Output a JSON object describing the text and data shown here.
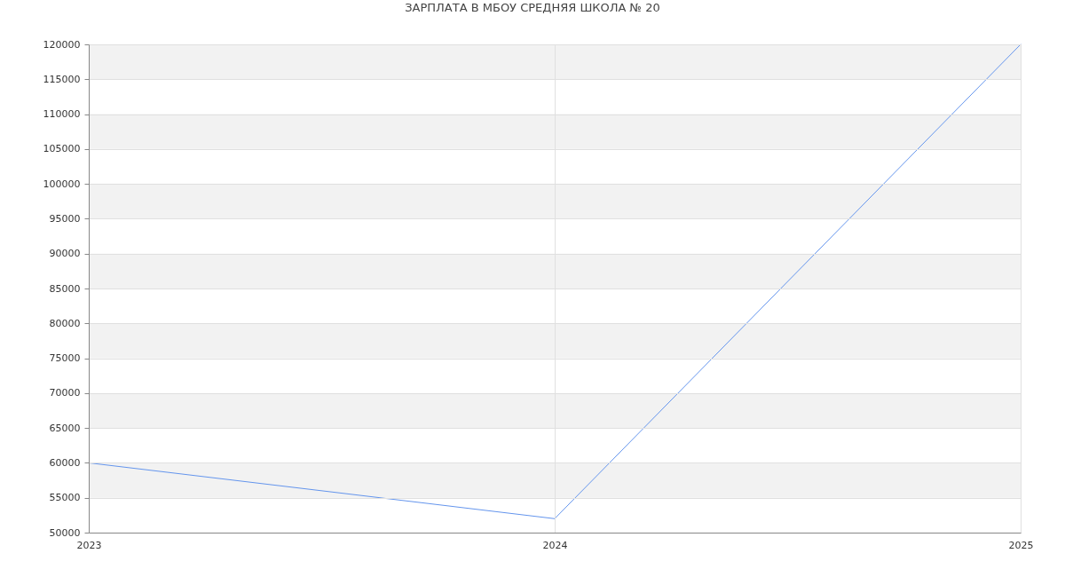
{
  "chart_data": {
    "type": "line",
    "title": "ЗАРПЛАТА В МБОУ СРЕДНЯЯ ШКОЛА № 20",
    "categories": [
      "2023",
      "2024",
      "2025"
    ],
    "series": [
      {
        "color": "#6495ed",
        "values": [
          60000,
          52000,
          120000
        ]
      }
    ],
    "ylim": [
      50000,
      120000
    ],
    "yticks": [
      50000,
      55000,
      60000,
      65000,
      70000,
      75000,
      80000,
      85000,
      90000,
      95000,
      100000,
      105000,
      110000,
      115000,
      120000
    ],
    "grid": true,
    "marker": "none",
    "line_style": "solid"
  }
}
